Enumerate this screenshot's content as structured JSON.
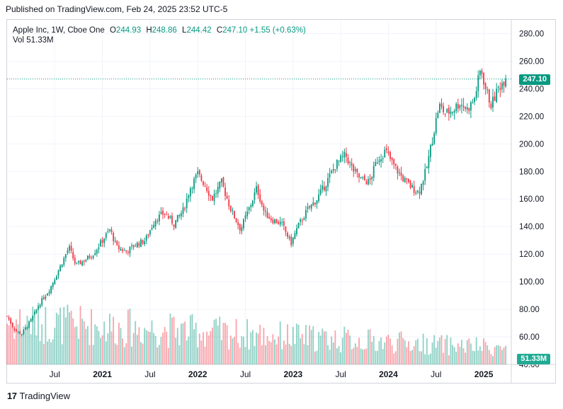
{
  "header": {
    "published": "Published on TradingView.com, Feb 24, 2025 23:52 UTC-5"
  },
  "legend": {
    "symbol": "Apple Inc, 1W, Cboe One",
    "o_label": "O",
    "o": "244.93",
    "h_label": "H",
    "h": "248.86",
    "l_label": "L",
    "l": "244.42",
    "c_label": "C",
    "c": "247.10",
    "change": "+1.55 (+0.63%)",
    "vol_label": "Vol",
    "vol": "51.33M"
  },
  "tags": {
    "price": "247.10",
    "volume": "51.33M"
  },
  "footer": {
    "brand": "TradingView",
    "logo": "17"
  },
  "colors": {
    "up": "#089981",
    "down": "#f23645",
    "grid": "#f0f3fa",
    "text": "#131722"
  },
  "chart_data": {
    "type": "candlestick",
    "title": "Apple Inc, 1W, Cboe One",
    "ylim": [
      40,
      290
    ],
    "y_ticks": [
      280,
      260,
      240,
      220,
      200,
      180,
      160,
      140,
      120,
      100,
      80,
      60,
      40
    ],
    "y_tick_labels": [
      "280.00",
      "260.00",
      "240.00",
      "220.00",
      "200.00",
      "180.00",
      "160.00",
      "140.00",
      "120.00",
      "100.00",
      "80.00",
      "60.00",
      "40.00"
    ],
    "x_ticks": [
      {
        "label": "Jul",
        "t": 2020.5
      },
      {
        "label": "2021",
        "t": 2021.0
      },
      {
        "label": "Jul",
        "t": 2021.5
      },
      {
        "label": "2022",
        "t": 2022.0
      },
      {
        "label": "Jul",
        "t": 2022.5
      },
      {
        "label": "2023",
        "t": 2023.0
      },
      {
        "label": "Jul",
        "t": 2023.5
      },
      {
        "label": "2024",
        "t": 2024.0
      },
      {
        "label": "Jul",
        "t": 2024.5
      },
      {
        "label": "2025",
        "t": 2025.0
      }
    ],
    "time_range": [
      2020.0,
      2025.23
    ],
    "last_price": 247.1,
    "keypoints": [
      [
        2020.0,
        75
      ],
      [
        2020.08,
        65
      ],
      [
        2020.15,
        62
      ],
      [
        2020.25,
        72
      ],
      [
        2020.35,
        85
      ],
      [
        2020.45,
        95
      ],
      [
        2020.55,
        110
      ],
      [
        2020.65,
        125
      ],
      [
        2020.72,
        112
      ],
      [
        2020.8,
        115
      ],
      [
        2020.9,
        120
      ],
      [
        2021.0,
        130
      ],
      [
        2021.08,
        138
      ],
      [
        2021.15,
        125
      ],
      [
        2021.25,
        122
      ],
      [
        2021.35,
        127
      ],
      [
        2021.45,
        130
      ],
      [
        2021.55,
        145
      ],
      [
        2021.65,
        150
      ],
      [
        2021.75,
        142
      ],
      [
        2021.85,
        152
      ],
      [
        2021.92,
        168
      ],
      [
        2022.0,
        178
      ],
      [
        2022.08,
        170
      ],
      [
        2022.15,
        160
      ],
      [
        2022.25,
        172
      ],
      [
        2022.35,
        152
      ],
      [
        2022.45,
        138
      ],
      [
        2022.55,
        155
      ],
      [
        2022.62,
        168
      ],
      [
        2022.7,
        150
      ],
      [
        2022.78,
        145
      ],
      [
        2022.88,
        142
      ],
      [
        2022.98,
        128
      ],
      [
        2023.05,
        140
      ],
      [
        2023.15,
        152
      ],
      [
        2023.25,
        160
      ],
      [
        2023.35,
        172
      ],
      [
        2023.45,
        185
      ],
      [
        2023.55,
        192
      ],
      [
        2023.62,
        182
      ],
      [
        2023.7,
        175
      ],
      [
        2023.8,
        172
      ],
      [
        2023.88,
        188
      ],
      [
        2023.97,
        195
      ],
      [
        2024.05,
        185
      ],
      [
        2024.15,
        175
      ],
      [
        2024.25,
        168
      ],
      [
        2024.32,
        165
      ],
      [
        2024.4,
        182
      ],
      [
        2024.48,
        210
      ],
      [
        2024.53,
        228
      ],
      [
        2024.6,
        222
      ],
      [
        2024.68,
        225
      ],
      [
        2024.75,
        230
      ],
      [
        2024.83,
        225
      ],
      [
        2024.9,
        232
      ],
      [
        2024.97,
        255
      ],
      [
        2025.02,
        240
      ],
      [
        2025.08,
        228
      ],
      [
        2025.15,
        240
      ],
      [
        2025.22,
        247.1
      ]
    ],
    "volume": {
      "unit": "M",
      "last": 51.33,
      "display_max": 60
    }
  }
}
